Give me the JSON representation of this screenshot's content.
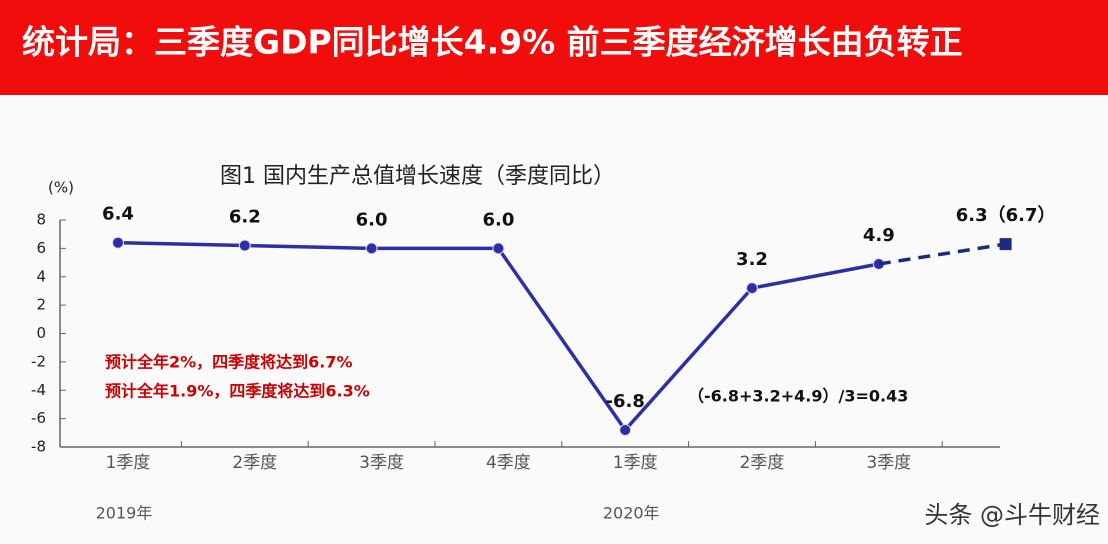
{
  "banner": "统计局：三季度GDP同比增长4.9% 前三季度经济增长由负转正",
  "watermark": "头条 @斗牛财经",
  "chart_data": {
    "type": "line",
    "title": "图1  国内生产总值增长速度（季度同比）",
    "ylabel": "(%)",
    "categories": [
      "1季度",
      "2季度",
      "3季度",
      "4季度",
      "1季度",
      "2季度",
      "3季度",
      null
    ],
    "x_groups": [
      "2019年",
      "2020年"
    ],
    "series": [
      {
        "color": "#2e2ea6",
        "dashed": false,
        "marker": "circle",
        "values": [
          6.4,
          6.2,
          6.0,
          6.0,
          -6.8,
          3.2,
          4.9,
          null
        ],
        "value_labels": [
          "6.4",
          "6.2",
          "6.0",
          "6.0",
          "-6.8",
          "3.2",
          "4.9",
          null
        ]
      },
      {
        "color": "#1c2a80",
        "dashed": true,
        "marker": "square",
        "values": [
          null,
          null,
          null,
          null,
          null,
          null,
          4.9,
          6.3
        ],
        "value_labels": [
          null,
          null,
          null,
          null,
          null,
          null,
          null,
          "6.3（6.7）"
        ]
      }
    ],
    "ylim": [
      -8,
      8
    ],
    "yticks": [
      -8,
      -6,
      -4,
      -2,
      0,
      2,
      4,
      6,
      8
    ],
    "annotations": [
      "预计全年2%，四季度将达到6.7%",
      "预计全年1.9%，四季度将达到6.3%",
      "（-6.8+3.2+4.9）/3=0.43"
    ]
  }
}
